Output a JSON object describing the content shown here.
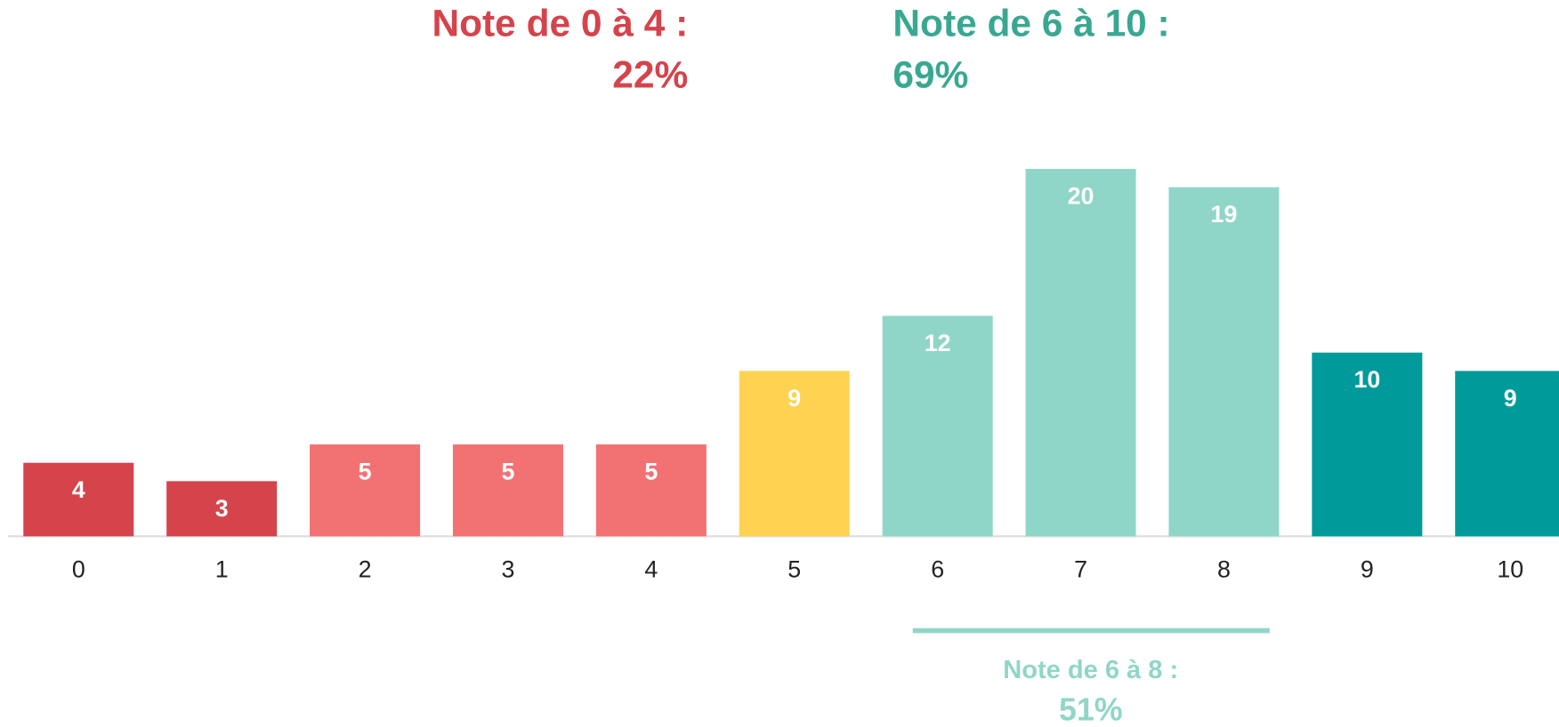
{
  "chart_data": {
    "type": "bar",
    "categories": [
      "0",
      "1",
      "2",
      "3",
      "4",
      "5",
      "6",
      "7",
      "8",
      "9",
      "10"
    ],
    "values": [
      4,
      3,
      5,
      5,
      5,
      9,
      12,
      20,
      19,
      10,
      9
    ],
    "colors": [
      "#d5434b",
      "#d5434b",
      "#f27274",
      "#f27274",
      "#f27274",
      "#fed352",
      "#90d6c8",
      "#90d6c8",
      "#90d6c8",
      "#009a9a",
      "#009a9a"
    ],
    "ylim": [
      0,
      20
    ],
    "annotations": [
      {
        "text": "Note de 0 à 4 :",
        "color": "#d5434b"
      },
      {
        "text": "22%",
        "color": "#d5434b"
      },
      {
        "text": "Note de 6 à 10 :",
        "color": "#3aa891"
      },
      {
        "text": "69%",
        "color": "#3aa891"
      },
      {
        "text": "Note de 6 à 8 :",
        "color": "#90d6c8"
      },
      {
        "text": "51%",
        "color": "#90d6c8"
      }
    ]
  }
}
